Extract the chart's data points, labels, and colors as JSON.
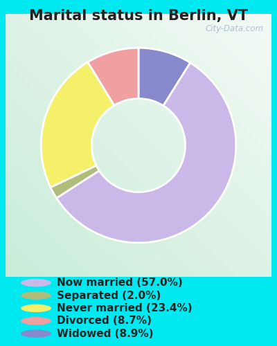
{
  "title": "Marital status in Berlin, VT",
  "slices": [
    57.0,
    2.0,
    23.4,
    8.7,
    8.9
  ],
  "labels": [
    "Now married (57.0%)",
    "Separated (2.0%)",
    "Never married (23.4%)",
    "Divorced (8.7%)",
    "Widowed (8.9%)"
  ],
  "colors": [
    "#c9b8e8",
    "#b0bc7a",
    "#f5f06a",
    "#f0a0a0",
    "#8888cc"
  ],
  "bg_cyan": "#00e8f0",
  "bg_chart_grad_left": "#c8ecd8",
  "bg_chart_grad_right": "#e8f8f0",
  "bg_chart_top": "#f0f8f4",
  "watermark": "City-Data.com",
  "title_fontsize": 15,
  "legend_fontsize": 11,
  "donut_width": 0.52
}
